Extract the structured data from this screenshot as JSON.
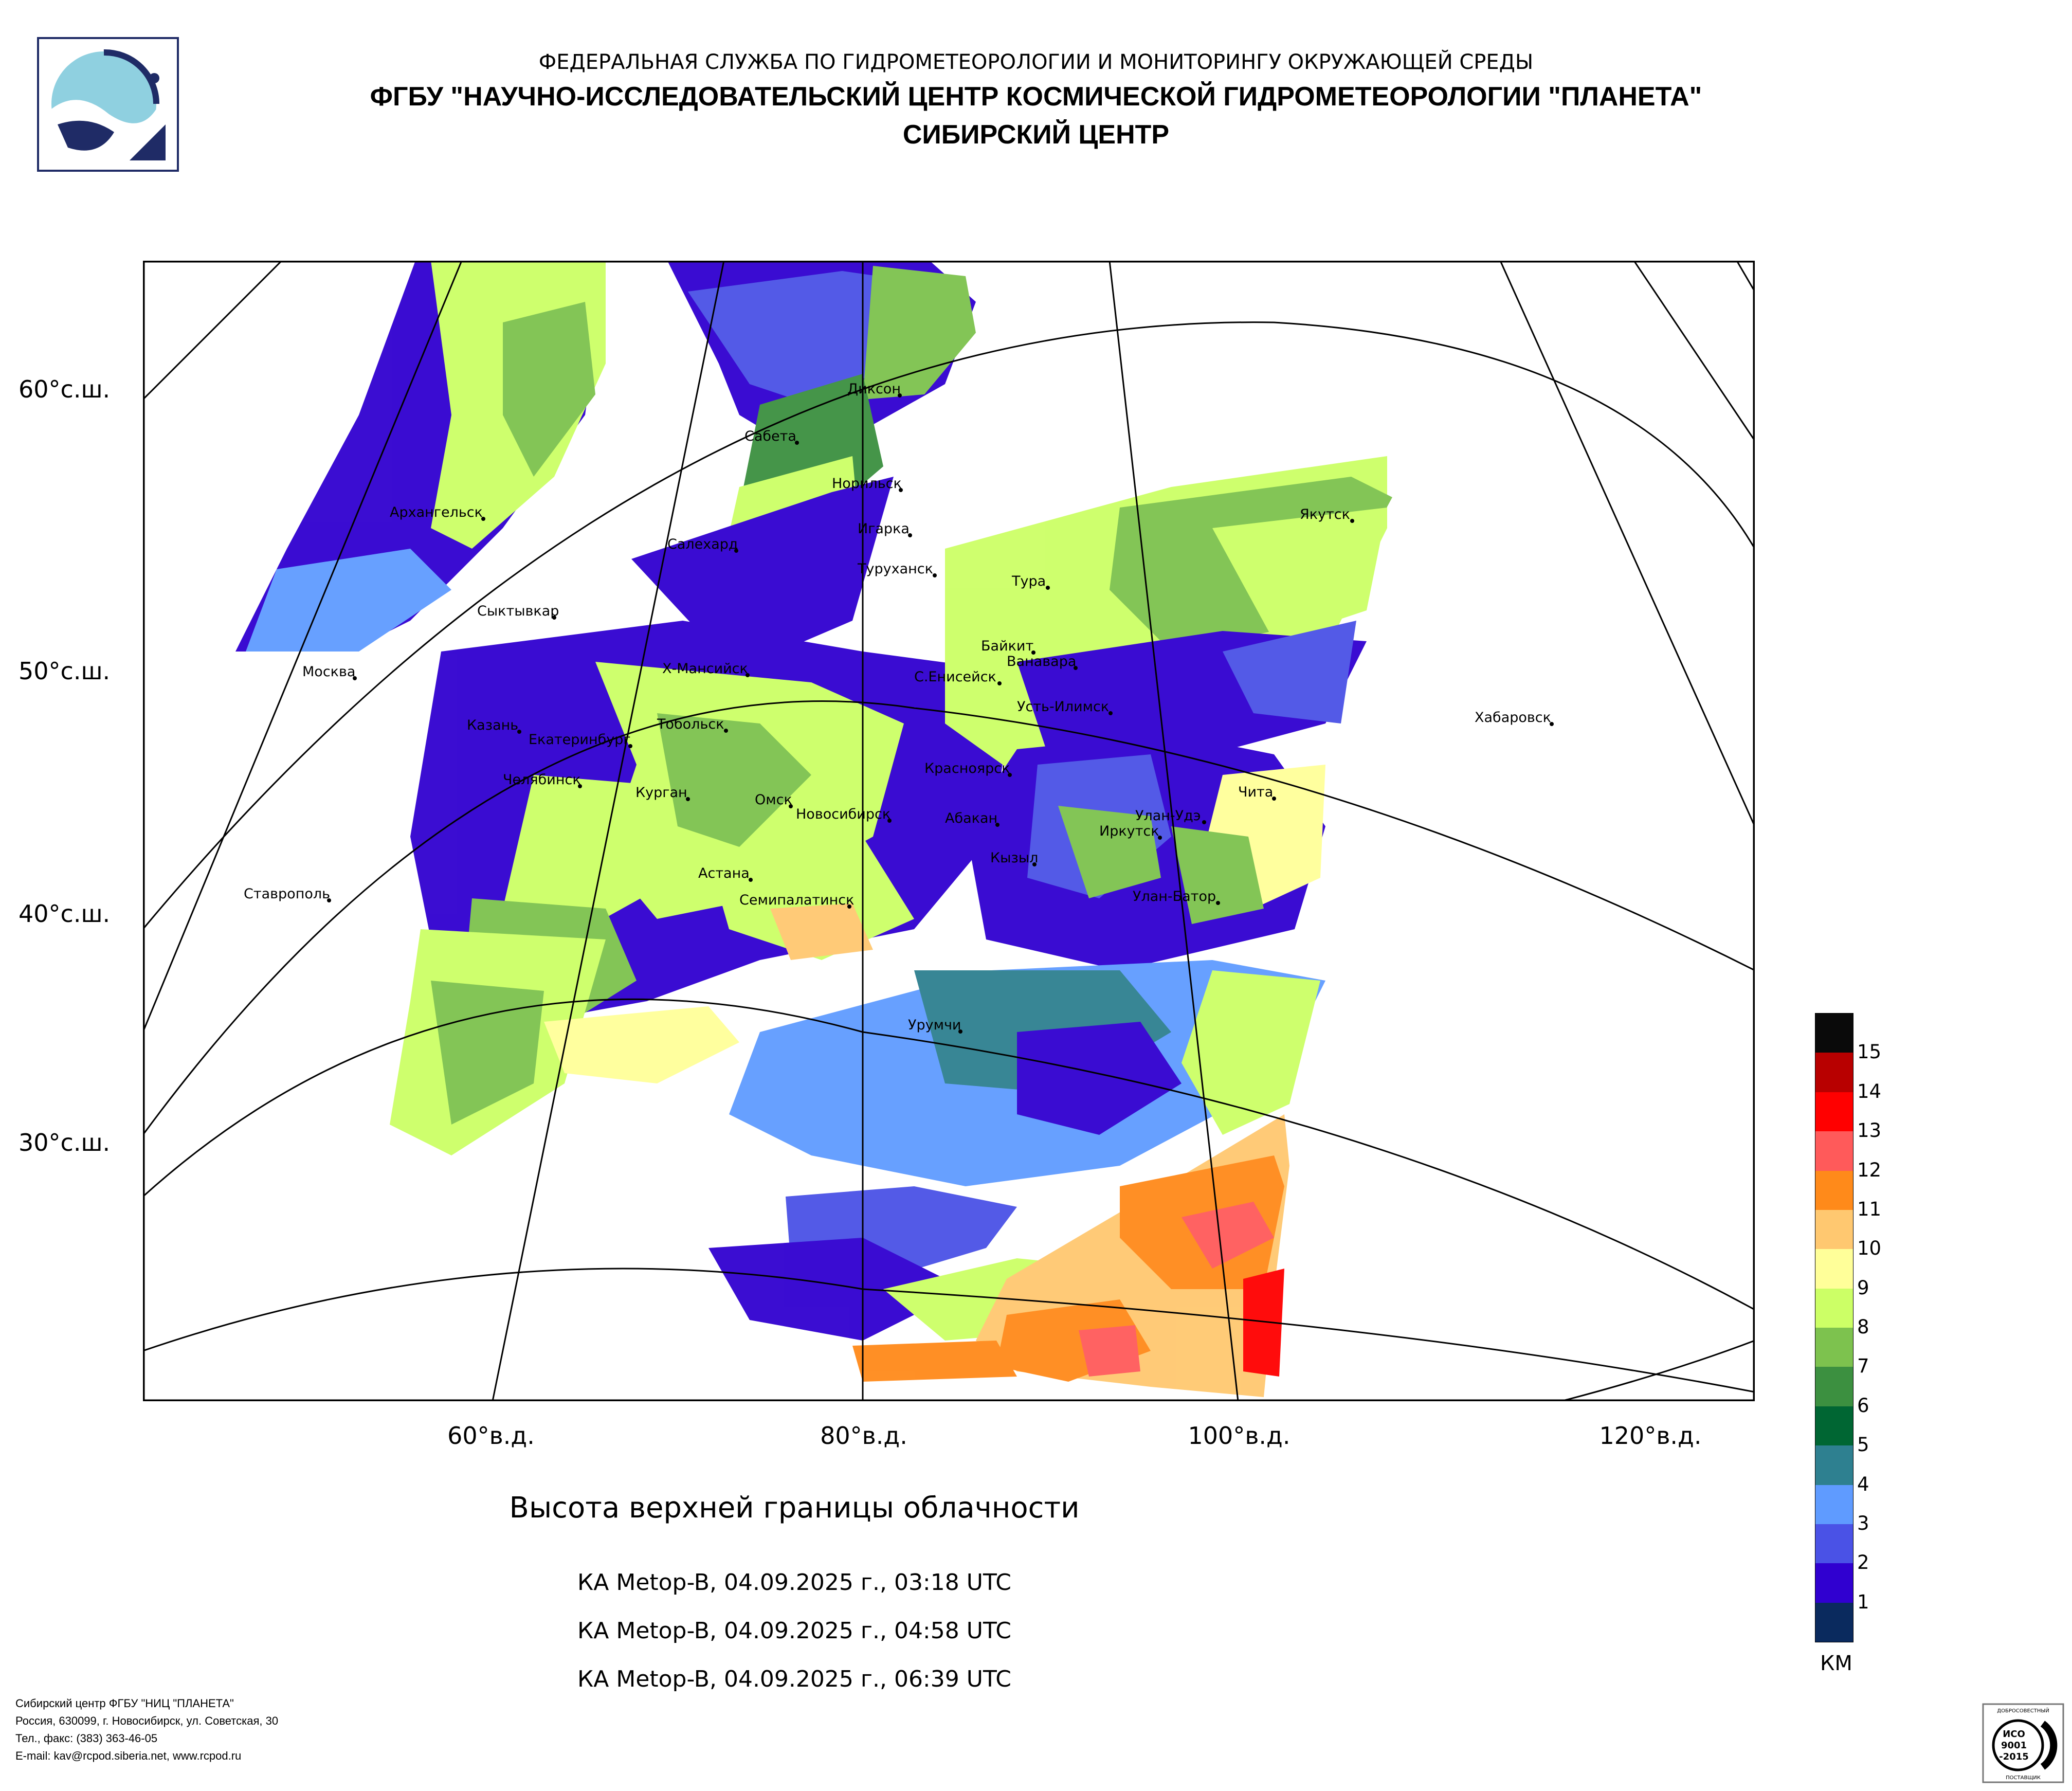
{
  "header": {
    "line1": "ФЕДЕРАЛЬНАЯ СЛУЖБА ПО ГИДРОМЕТЕОРОЛОГИИ И МОНИТОРИНГУ ОКРУЖАЮЩЕЙ СРЕДЫ",
    "line2": "ФГБУ \"НАУЧНО-ИССЛЕДОВАТЕЛЬСКИЙ ЦЕНТР КОСМИЧЕСКОЙ ГИДРОМЕТЕОРОЛОГИИ \"ПЛАНЕТА\"",
    "line3": "СИБИРСКИЙ ЦЕНТР"
  },
  "map": {
    "lat_labels": [
      "60°с.ш.",
      "50°с.ш.",
      "40°с.ш.",
      "30°с.ш."
    ],
    "lon_labels": [
      "60°в.д.",
      "80°в.д.",
      "100°в.д.",
      "120°в.д."
    ],
    "cities": [
      "Диксон",
      "Сабета",
      "Норильск",
      "Игарка",
      "Туруханск",
      "Якутск",
      "Салехард",
      "Архангельск",
      "Тура",
      "Сыктывкар",
      "Байкит",
      "Ванавара",
      "Москва",
      "Х-Мансийск",
      "С.Енисейск",
      "Хабаровск",
      "Усть-Илимск",
      "Казань",
      "Тобольск",
      "Екатеринбург",
      "Красноярск",
      "Челябинск",
      "Курган",
      "Омск",
      "Чита",
      "Новосибирск",
      "Абакан",
      "Улан-Удэ",
      "Иркутск",
      "Кызыл",
      "Астана",
      "Ставрополь",
      "Улан-Батор",
      "Семипалатинск",
      "Урумчи"
    ]
  },
  "titles": {
    "main": "Высота верхней границы облачности",
    "passes": [
      "КА Metop-B, 04.09.2025 г., 03:18 UTC",
      "КА Metop-B, 04.09.2025 г., 04:58 UTC",
      "КА Metop-B, 04.09.2025 г., 06:39 UTC"
    ]
  },
  "legend": {
    "unit": "КМ",
    "ticks": [
      "15",
      "14",
      "13",
      "12",
      "11",
      "10",
      "9",
      "8",
      "7",
      "6",
      "5",
      "4",
      "3",
      "2",
      "1"
    ],
    "colors": [
      "#0a0a0a",
      "#b80000",
      "#ff0000",
      "#ff5a5a",
      "#ff8a1a",
      "#ffc870",
      "#ffff99",
      "#ccff66",
      "#7dc24e",
      "#3c9040",
      "#006633",
      "#2e8090",
      "#5f9bff",
      "#4a52e6",
      "#3000d0",
      "#0a2a5e"
    ]
  },
  "footer": {
    "line1": "Сибирский центр ФГБУ \"НИЦ \"ПЛАНЕТА\"",
    "line2": "Россия, 630099, г. Новосибирск, ул. Советская, 30",
    "line3": "Тел., факс: (383) 363-46-05",
    "line4": "E-mail: kav@rcpod.siberia.net, www.rcpod.ru",
    "cert": [
      "ДОБРОСОВЕСТНЫЙ",
      "ИСО",
      "9001",
      "-2015",
      "ПОСТАВЩИК"
    ]
  }
}
